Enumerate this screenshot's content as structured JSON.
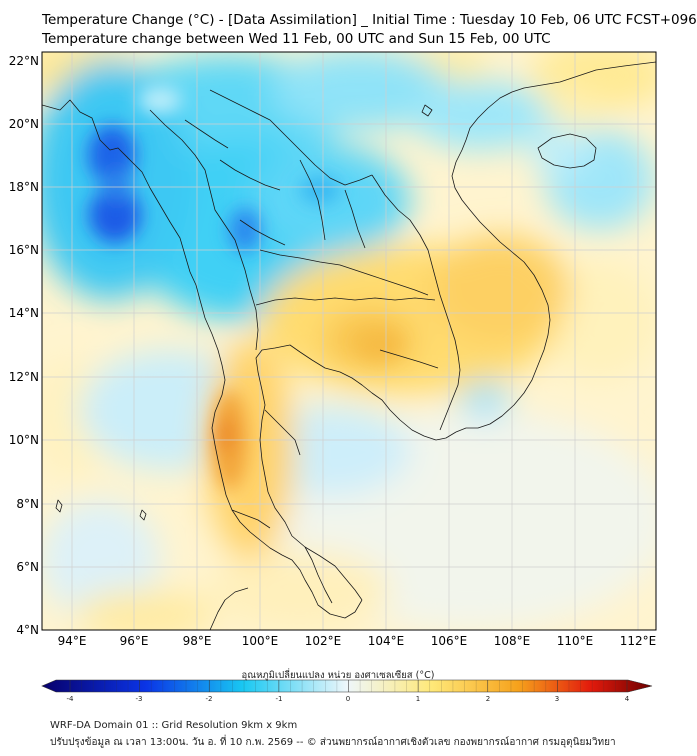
{
  "header": {
    "title_line1": "Temperature Change (°C) - [Data Assimilation] _ Initial Time : Tuesday 10 Feb, 06 UTC FCST+096",
    "title_line2": "Temperature change between Wed 11 Feb, 00 UTC and Sun 15 Feb, 00 UTC"
  },
  "map": {
    "lat_labels": [
      "22°N",
      "20°N",
      "18°N",
      "16°N",
      "14°N",
      "12°N",
      "10°N",
      "8°N",
      "6°N",
      "4°N"
    ],
    "lon_labels": [
      "94°E",
      "96°E",
      "98°E",
      "100°E",
      "102°E",
      "104°E",
      "106°E",
      "108°E",
      "110°E",
      "112°E"
    ]
  },
  "colorbar": {
    "title": "อุณหภูมิเปลี่ยนแปลง หน่วย องศาเซลเซียส (°C)",
    "tick_labels": [
      "-4",
      "-3",
      "-2",
      "-1",
      "0",
      "1",
      "2",
      "3",
      "4"
    ],
    "range": [
      -4,
      4
    ],
    "colors": {
      "min": "#08006b",
      "blue": "#0a34e6",
      "cyan": "#19c8f2",
      "light": "#eef7fb",
      "yellow": "#ffe878",
      "orange": "#f6a21c",
      "red": "#e21a0c",
      "max": "#6b0000"
    }
  },
  "footer": {
    "line1": "WRF-DA Domain 01 :: Grid Resolution 9km x 9km",
    "line2": "ปรับปรุงข้อมูล ณ เวลา 13:00น. วัน อ. ที่ 10 ก.พ. 2569 -- © ส่วนพยากรณ์อากาศเชิงตัวเลข กองพยากรณ์อากาศ กรมอุตุนิยมวิทยา"
  }
}
